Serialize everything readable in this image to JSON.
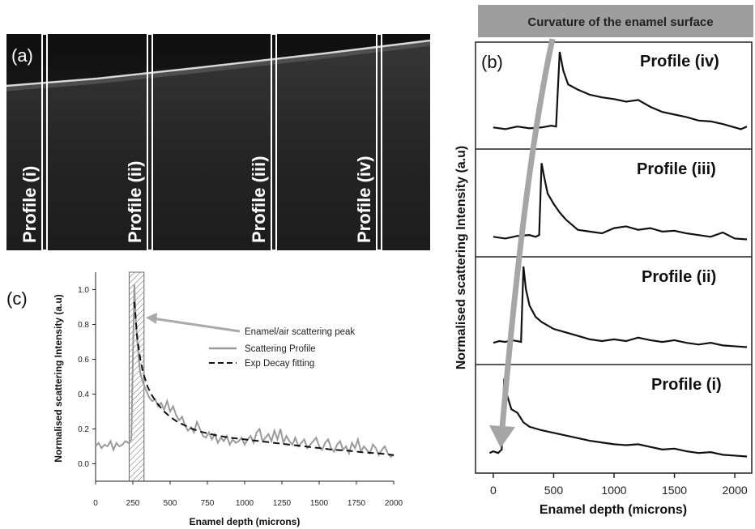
{
  "panels": {
    "a": {
      "letter": "(a)",
      "profiles": [
        "Profile (i)",
        "Profile (ii)",
        "Profile (iii)",
        "Profile (iv)"
      ]
    },
    "b": {
      "letter": "(b)",
      "banner": "Curvature of the enamel surface",
      "profile_titles": [
        "Profile (iv)",
        "Profile (iii)",
        "Profile (ii)",
        "Profile (i)"
      ],
      "xlabel": "Enamel depth (microns)",
      "ylabel": "Normalised scattering Intensity (a.u)",
      "xticks": [
        "0",
        "500",
        "1000",
        "1500",
        "2000"
      ]
    },
    "c": {
      "letter": "(c)",
      "xlabel": "Enamel depth (microns)",
      "ylabel": "Normalised scattering Intensity (a.u)",
      "xticks": [
        "0",
        "250",
        "500",
        "750",
        "1000",
        "1250",
        "1500",
        "1750",
        "2000"
      ],
      "yticks": [
        "0.0",
        "0.2",
        "0.4",
        "0.6",
        "0.8",
        "1.0"
      ],
      "legend": {
        "annotation": "Enamel/air scattering peak",
        "series1": "Scattering Profile",
        "series2": "Exp Decay fitting"
      }
    }
  },
  "colors": {
    "profile_line": "#9a9a9a",
    "fit_line": "#111111",
    "arrow": "#a6a6a6",
    "oct_bg": "#2a2a2a"
  },
  "chart_data": [
    {
      "type": "line",
      "xlabel": "Enamel depth (microns)",
      "ylabel": "Normalised scattering Intensity (a.u)",
      "xlim": [
        0,
        2000
      ],
      "ylim": [
        -0.1,
        1.1
      ],
      "annotation": "Enamel/air scattering peak",
      "shaded_region": [
        225,
        325
      ],
      "series": [
        {
          "name": "Scattering Profile",
          "x": [
            0,
            20,
            40,
            60,
            80,
            100,
            120,
            140,
            160,
            180,
            200,
            220,
            240,
            250,
            260,
            270,
            280,
            290,
            300,
            320,
            340,
            360,
            380,
            400,
            420,
            440,
            460,
            480,
            500,
            520,
            540,
            560,
            580,
            600,
            620,
            640,
            660,
            680,
            700,
            720,
            740,
            760,
            780,
            800,
            820,
            840,
            860,
            880,
            900,
            920,
            940,
            960,
            980,
            1000,
            1020,
            1040,
            1060,
            1080,
            1100,
            1120,
            1140,
            1160,
            1180,
            1200,
            1220,
            1240,
            1260,
            1280,
            1300,
            1320,
            1340,
            1360,
            1380,
            1400,
            1420,
            1440,
            1460,
            1480,
            1500,
            1520,
            1540,
            1560,
            1580,
            1600,
            1620,
            1640,
            1660,
            1680,
            1700,
            1720,
            1740,
            1760,
            1780,
            1800,
            1820,
            1840,
            1860,
            1880,
            1900,
            1920,
            1940,
            1960,
            1980,
            2000
          ],
          "y": [
            0.1,
            0.12,
            0.09,
            0.11,
            0.1,
            0.13,
            0.08,
            0.12,
            0.1,
            0.11,
            0.13,
            0.12,
            0.14,
            0.6,
            1.03,
            0.82,
            0.7,
            0.6,
            0.52,
            0.46,
            0.42,
            0.38,
            0.36,
            0.37,
            0.33,
            0.35,
            0.31,
            0.36,
            0.3,
            0.33,
            0.28,
            0.25,
            0.27,
            0.22,
            0.19,
            0.21,
            0.18,
            0.24,
            0.2,
            0.16,
            0.15,
            0.18,
            0.14,
            0.17,
            0.12,
            0.15,
            0.13,
            0.16,
            0.11,
            0.14,
            0.12,
            0.13,
            0.15,
            0.11,
            0.14,
            0.16,
            0.12,
            0.18,
            0.2,
            0.13,
            0.15,
            0.17,
            0.13,
            0.19,
            0.14,
            0.2,
            0.12,
            0.16,
            0.13,
            0.11,
            0.15,
            0.1,
            0.12,
            0.14,
            0.09,
            0.11,
            0.13,
            0.15,
            0.1,
            0.08,
            0.12,
            0.14,
            0.09,
            0.07,
            0.11,
            0.13,
            0.08,
            0.1,
            0.06,
            0.12,
            0.09,
            0.14,
            0.07,
            0.1,
            0.08,
            0.06,
            0.11,
            0.09,
            0.05,
            0.08,
            0.1,
            0.06,
            0.04,
            0.05
          ]
        },
        {
          "name": "Exp Decay fitting",
          "x": [
            260,
            280,
            300,
            320,
            350,
            380,
            420,
            460,
            500,
            550,
            600,
            650,
            700,
            800,
            900,
            1000,
            1100,
            1200,
            1300,
            1400,
            1500,
            1600,
            1700,
            1800,
            1900,
            2000
          ],
          "y": [
            0.93,
            0.72,
            0.6,
            0.52,
            0.44,
            0.39,
            0.34,
            0.3,
            0.27,
            0.24,
            0.22,
            0.2,
            0.185,
            0.165,
            0.15,
            0.14,
            0.13,
            0.12,
            0.11,
            0.1,
            0.09,
            0.08,
            0.075,
            0.065,
            0.06,
            0.05
          ]
        }
      ]
    },
    {
      "type": "line",
      "xlabel": "Enamel depth (microns)",
      "ylabel": "Normalised scattering Intensity (a.u)",
      "xlim": [
        -100,
        2100
      ],
      "series": [
        {
          "name": "Profile (iv)",
          "x": [
            0,
            100,
            200,
            300,
            400,
            480,
            520,
            550,
            580,
            620,
            700,
            800,
            900,
            1000,
            1100,
            1200,
            1300,
            1400,
            1500,
            1600,
            1700,
            1800,
            1900,
            2000,
            2050,
            2100
          ],
          "y": [
            0.12,
            0.1,
            0.13,
            0.11,
            0.12,
            0.14,
            0.13,
            1.0,
            0.78,
            0.62,
            0.56,
            0.5,
            0.47,
            0.45,
            0.42,
            0.44,
            0.36,
            0.3,
            0.27,
            0.24,
            0.2,
            0.19,
            0.16,
            0.12,
            0.1,
            0.13
          ]
        },
        {
          "name": "Profile (iii)",
          "x": [
            0,
            100,
            200,
            300,
            350,
            380,
            400,
            420,
            450,
            500,
            550,
            600,
            700,
            800,
            900,
            1000,
            1100,
            1200,
            1300,
            1400,
            1500,
            1600,
            1700,
            1800,
            1900,
            2000,
            2100
          ],
          "y": [
            0.1,
            0.08,
            0.11,
            0.12,
            0.1,
            0.12,
            0.95,
            0.8,
            0.6,
            0.48,
            0.38,
            0.3,
            0.18,
            0.16,
            0.14,
            0.2,
            0.22,
            0.18,
            0.2,
            0.16,
            0.17,
            0.14,
            0.12,
            0.1,
            0.15,
            0.08,
            0.07
          ]
        },
        {
          "name": "Profile (ii)",
          "x": [
            0,
            50,
            100,
            150,
            200,
            230,
            250,
            270,
            300,
            350,
            400,
            500,
            600,
            700,
            800,
            900,
            1000,
            1100,
            1200,
            1300,
            1400,
            1500,
            1600,
            1700,
            1800,
            1900,
            2000,
            2100
          ],
          "y": [
            0.12,
            0.14,
            0.13,
            0.15,
            0.14,
            0.13,
            1.0,
            0.74,
            0.55,
            0.42,
            0.36,
            0.28,
            0.24,
            0.2,
            0.16,
            0.14,
            0.16,
            0.14,
            0.18,
            0.15,
            0.13,
            0.15,
            0.12,
            0.1,
            0.12,
            0.09,
            0.08,
            0.07
          ]
        },
        {
          "name": "Profile (i)",
          "x": [
            -30,
            0,
            40,
            70,
            90,
            110,
            150,
            200,
            250,
            300,
            400,
            500,
            600,
            700,
            800,
            900,
            1000,
            1100,
            1200,
            1300,
            1400,
            1500,
            1600,
            1700,
            1800,
            1900,
            2000,
            2100
          ],
          "y": [
            0.1,
            0.12,
            0.1,
            0.14,
            0.95,
            0.78,
            0.6,
            0.56,
            0.45,
            0.4,
            0.36,
            0.33,
            0.3,
            0.27,
            0.24,
            0.22,
            0.2,
            0.19,
            0.2,
            0.17,
            0.14,
            0.15,
            0.12,
            0.1,
            0.11,
            0.08,
            0.07,
            0.06
          ]
        }
      ]
    }
  ]
}
